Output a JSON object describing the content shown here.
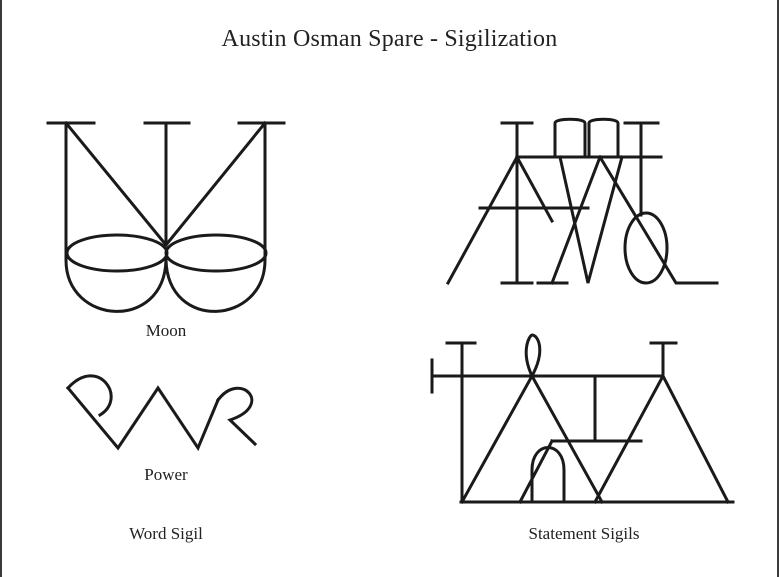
{
  "title": "Austin Osman Spare - Sigilization",
  "labels": {
    "moon": "Moon",
    "power": "Power",
    "word_sigil": "Word Sigil",
    "statement_sigils": "Statement Sigils"
  },
  "colors": {
    "ink": "#1a1a1a",
    "background": "#ffffff",
    "frame": "#3a3a3a"
  }
}
